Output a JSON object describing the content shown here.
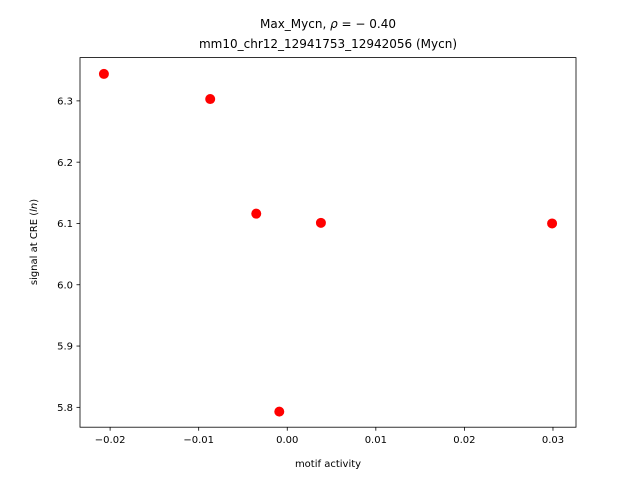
{
  "chart_data": {
    "type": "scatter",
    "title_line1_prefix": "Max_Mycn, ",
    "title_line1_rho": "ρ",
    "title_line1_value": " = − 0.40",
    "title_line2": "mm10_chr12_12941753_12942056 (Mycn)",
    "xlabel": "motif activity",
    "ylabel_prefix": "signal at CRE (",
    "ylabel_italic": "ln",
    "ylabel_suffix": ")",
    "xlim": [
      -0.0234,
      0.0326
    ],
    "ylim": [
      5.7676,
      6.3706
    ],
    "x_ticks": [
      -0.02,
      -0.01,
      0.0,
      0.01,
      0.02,
      0.03
    ],
    "x_tick_labels": [
      "−0.02",
      "−0.01",
      "0.00",
      "0.01",
      "0.02",
      "0.03"
    ],
    "y_ticks": [
      5.8,
      5.9,
      6.0,
      6.1,
      6.2,
      6.3
    ],
    "y_tick_labels": [
      "5.8",
      "5.9",
      "6.0",
      "6.1",
      "6.2",
      "6.3"
    ],
    "marker_color": "#ff0000",
    "points": [
      {
        "x": -0.0207,
        "y": 6.344
      },
      {
        "x": -0.0087,
        "y": 6.303
      },
      {
        "x": -0.0035,
        "y": 6.116
      },
      {
        "x": -0.0009,
        "y": 5.793
      },
      {
        "x": 0.0038,
        "y": 6.101
      },
      {
        "x": 0.0299,
        "y": 6.1
      }
    ]
  }
}
